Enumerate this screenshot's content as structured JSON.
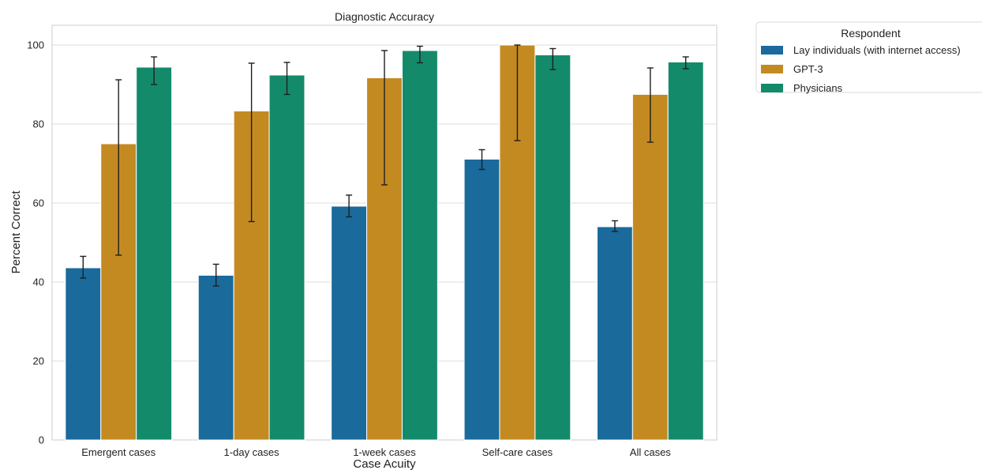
{
  "chart_data": {
    "type": "bar",
    "title": "Diagnostic Accuracy",
    "xlabel": "Case Acuity",
    "ylabel": "Percent Correct",
    "ylim": [
      0,
      105
    ],
    "yticks": [
      0,
      20,
      40,
      60,
      80,
      100
    ],
    "grid": true,
    "legend_title": "Respondent",
    "legend_position": "outside-top-right",
    "categories": [
      "Emergent cases",
      "1-day cases",
      "1-week cases",
      "Self-care cases",
      "All cases"
    ],
    "series": [
      {
        "name": "Lay individuals (with internet access)",
        "color": "#1a6a9c",
        "values": [
          43.6,
          41.7,
          59.2,
          71.1,
          54.0
        ],
        "error_low": [
          41.0,
          39.0,
          56.5,
          68.5,
          52.8
        ],
        "error_high": [
          46.5,
          44.5,
          62.0,
          73.5,
          55.5
        ]
      },
      {
        "name": "GPT-3",
        "color": "#c48a22",
        "values": [
          75.0,
          83.3,
          91.7,
          100.0,
          87.5
        ],
        "error_low": [
          46.8,
          55.3,
          64.6,
          75.8,
          75.4
        ],
        "error_high": [
          91.2,
          95.4,
          98.6,
          100.0,
          94.2
        ]
      },
      {
        "name": "Physicians",
        "color": "#138b6a",
        "values": [
          94.4,
          92.4,
          98.6,
          97.5,
          95.7
        ],
        "error_low": [
          90.0,
          87.5,
          95.5,
          93.8,
          94.0
        ],
        "error_high": [
          97.0,
          95.6,
          99.7,
          99.1,
          97.0
        ]
      }
    ]
  }
}
